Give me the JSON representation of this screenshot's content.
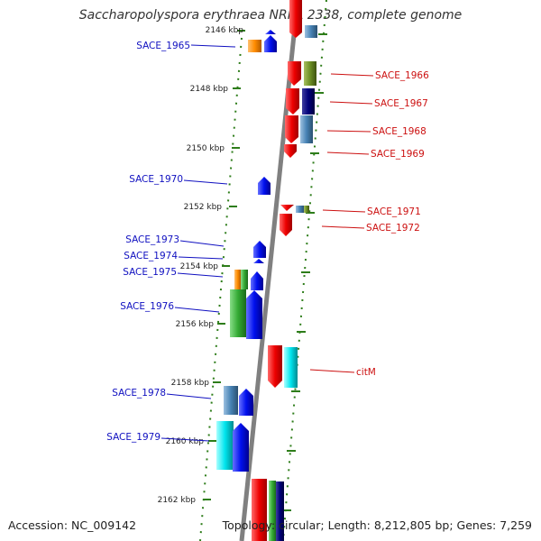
{
  "title": "Saccharopolyspora erythraea NRRL 2338, complete genome",
  "footer": {
    "accession": "Accession: NC_009142",
    "topology": "Topology: circular; Length: 8,212,805 bp; Genes: 7,259"
  },
  "colors": {
    "backbone": "#808080",
    "tick": "#2e7d1a",
    "left_label": "#1010c0",
    "right_label": "#cc1010",
    "blue": "#0010ee",
    "red": "#ee0000",
    "orange": "#ff8c00",
    "green": "#33aa33",
    "olive": "#6b8e23",
    "navy": "#00007a",
    "steelblue": "#4682b4",
    "cyan": "#00e5ee"
  },
  "kbp_labels": [
    "2146 kbp",
    "2148 kbp",
    "2150 kbp",
    "2152 kbp",
    "2154 kbp",
    "2156 kbp",
    "2158 kbp",
    "2160 kbp",
    "2162 kbp"
  ],
  "left_genes": [
    "SACE_1965",
    "SACE_1970",
    "SACE_1973",
    "SACE_1974",
    "SACE_1975",
    "SACE_1976",
    "SACE_1978",
    "SACE_1979"
  ],
  "right_genes": [
    "SACE_1966",
    "SACE_1967",
    "SACE_1968",
    "SACE_1969",
    "SACE_1971",
    "SACE_1972",
    "citM"
  ]
}
